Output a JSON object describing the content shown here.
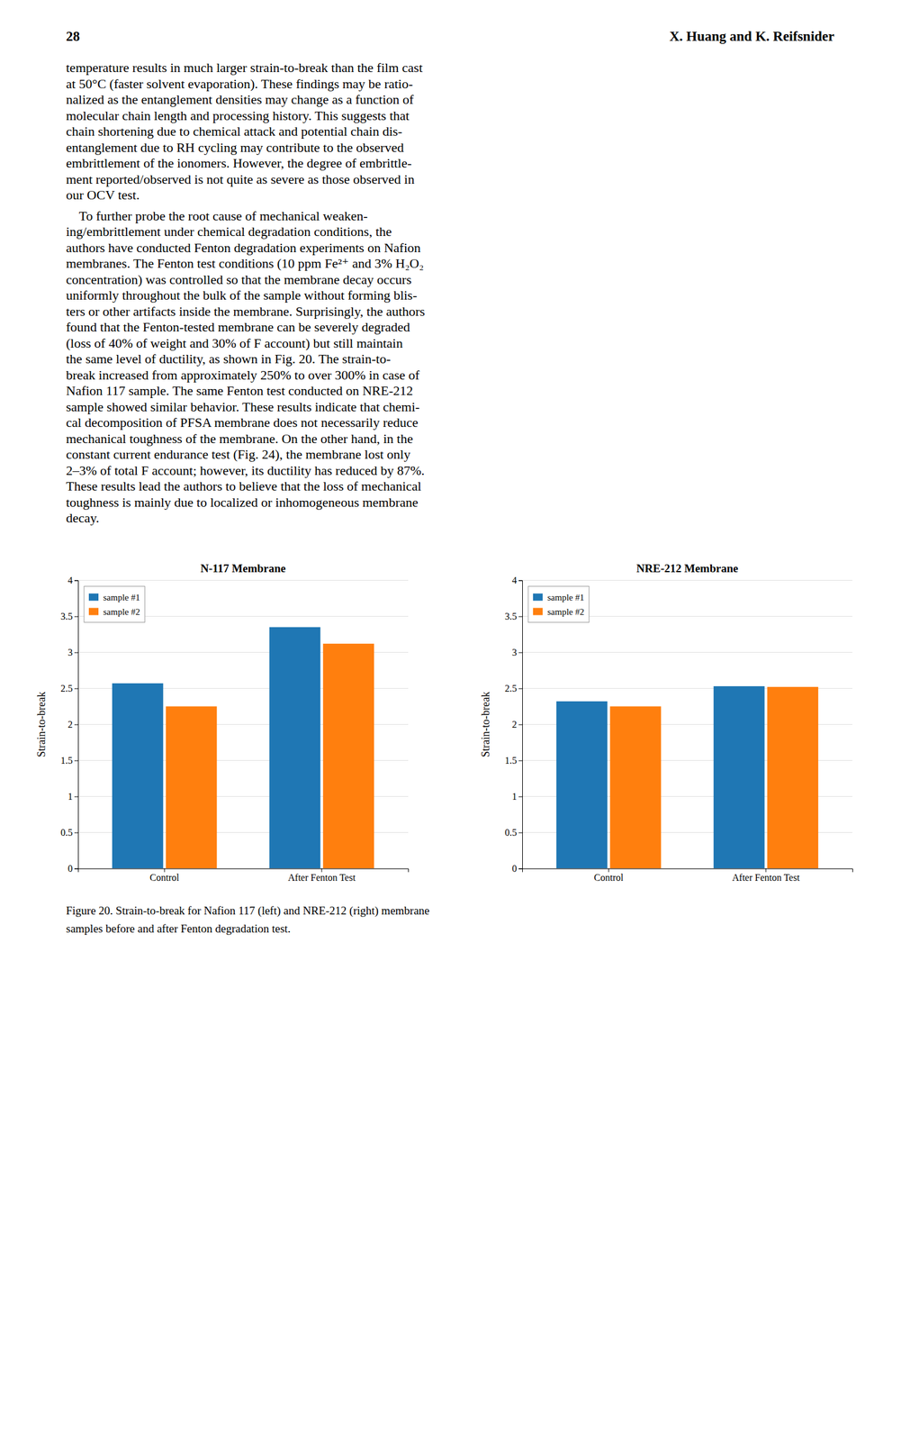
{
  "header": [
    "28",
    "X. Huang and K. Reifsnider"
  ],
  "paragraphs": [
    [
      "temperature results in much larger strain-to-break than the film cast",
      "at 50°C (faster solvent evaporation). These findings may be ratio-",
      "nalized as the entanglement densities may change as a function of",
      "molecular chain length and processing history. This suggests that",
      "chain shortening due to chemical attack and potential chain dis-",
      "entanglement due to RH cycling may contribute to the observed",
      "embrittlement of the ionomers. However, the degree of embrittle-",
      "ment reported/observed is not quite as severe as those observed in",
      "our OCV test."
    ],
    [
      "    To further probe the root cause of mechanical weaken-",
      "ing/embrittlement under chemical degradation conditions, the",
      "authors have conducted Fenton degradation experiments on Nafion",
      "membranes. The Fenton test conditions (10 ppm Fe²⁺ and 3% H₂O₂",
      "concentration) was controlled so that the membrane decay occurs",
      "uniformly throughout the bulk of the sample without forming blis-",
      "ters or other artifacts inside the membrane. Surprisingly, the authors",
      "found that the Fenton-tested membrane can be severely degraded",
      "(loss of 40% of weight and 30% of F account) but still maintain",
      "the same level of ductility, as shown in Fig. 20. The strain-to-",
      "break increased from approximately 250% to over 300% in case of",
      "Nafion 117 sample. The same Fenton test conducted on NRE-212",
      "sample showed similar behavior. These results indicate that chemi-",
      "cal decomposition of PFSA membrane does not necessarily reduce",
      "mechanical toughness of the membrane. On the other hand, in the",
      "constant current endurance test (Fig. 24), the membrane lost only",
      "2–3% of total F account; however, its ductility has reduced by 87%.",
      "These results lead the authors to believe that the loss of mechanical",
      "toughness is mainly due to localized or inhomogeneous membrane",
      "decay."
    ]
  ],
  "chart_data": [
    {
      "type": "bar",
      "title": "N-117 Membrane",
      "ylabel": "Strain-to-break",
      "categories": [
        "Control",
        "After Fenton Test"
      ],
      "series": [
        {
          "name": "sample #1",
          "values": [
            2.57,
            3.35
          ]
        },
        {
          "name": "sample #2",
          "values": [
            2.25,
            3.12
          ]
        }
      ],
      "ylim": [
        0,
        4
      ],
      "yticks": [
        0,
        0.5,
        1,
        1.5,
        2,
        2.5,
        3,
        3.5,
        4
      ],
      "grid": true,
      "legend": "upper left"
    },
    {
      "type": "bar",
      "title": "NRE-212 Membrane",
      "ylabel": "Strain-to-break",
      "categories": [
        "Control",
        "After Fenton Test"
      ],
      "series": [
        {
          "name": "sample #1",
          "values": [
            2.32,
            2.53
          ]
        },
        {
          "name": "sample #2",
          "values": [
            2.25,
            2.52
          ]
        }
      ],
      "ylim": [
        0,
        4
      ],
      "yticks": [
        0,
        0.5,
        1,
        1.5,
        2,
        2.5,
        3,
        3.5,
        4
      ],
      "grid": true,
      "legend": "upper left"
    }
  ],
  "caption": [
    "Figure 20. Strain-to-break for Nafion 117 (left) and NRE-212 (right) membrane",
    "samples before and after Fenton degradation test."
  ]
}
